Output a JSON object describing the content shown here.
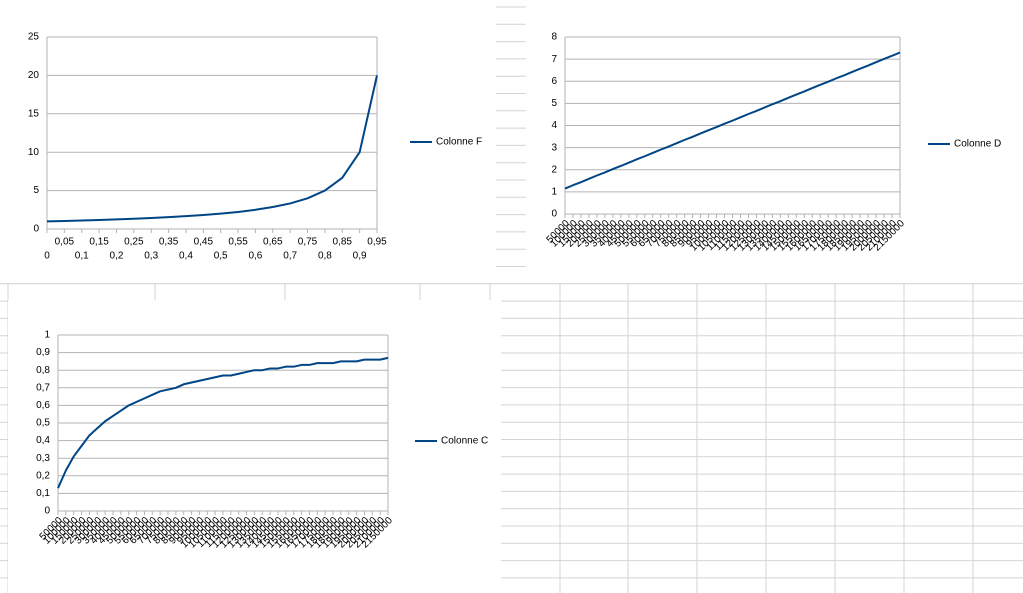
{
  "chart_data": [
    {
      "type": "line",
      "legend": "right",
      "grid": true,
      "categories": [
        "0",
        "0,05",
        "0,1",
        "0,15",
        "0,2",
        "0,25",
        "0,3",
        "0,35",
        "0,4",
        "0,45",
        "0,5",
        "0,55",
        "0,6",
        "0,65",
        "0,7",
        "0,75",
        "0,8",
        "0,85",
        "0,9",
        "0,95"
      ],
      "series": [
        {
          "name": "Colonne F",
          "color": "#004586",
          "values": [
            1,
            1.05,
            1.11,
            1.18,
            1.25,
            1.33,
            1.43,
            1.54,
            1.67,
            1.82,
            2,
            2.22,
            2.5,
            2.86,
            3.33,
            4,
            5,
            6.67,
            10,
            20
          ]
        }
      ],
      "ylim": [
        0,
        25
      ],
      "yticks": [
        0,
        5,
        10,
        15,
        20,
        25
      ]
    },
    {
      "type": "line",
      "legend": "right",
      "grid": true,
      "categories": [
        "50000",
        "100000",
        "150000",
        "200000",
        "250000",
        "300000",
        "350000",
        "400000",
        "450000",
        "500000",
        "550000",
        "600000",
        "650000",
        "700000",
        "750000",
        "800000",
        "850000",
        "900000",
        "950000",
        "1000000",
        "1050000",
        "1100000",
        "1150000",
        "1200000",
        "1250000",
        "1300000",
        "1350000",
        "1400000",
        "1450000",
        "1500000",
        "1550000",
        "1600000",
        "1650000",
        "1700000",
        "1750000",
        "1800000",
        "1850000",
        "1900000",
        "1950000",
        "2000000",
        "2050000",
        "2100000",
        "2150000"
      ],
      "series": [
        {
          "name": "Colonne D",
          "color": "#004586",
          "values": [
            1.15,
            1.3,
            1.44,
            1.59,
            1.74,
            1.88,
            2.03,
            2.17,
            2.32,
            2.47,
            2.61,
            2.76,
            2.91,
            3.05,
            3.2,
            3.35,
            3.49,
            3.64,
            3.79,
            3.93,
            4.08,
            4.22,
            4.37,
            4.52,
            4.66,
            4.81,
            4.96,
            5.1,
            5.25,
            5.4,
            5.54,
            5.69,
            5.84,
            5.98,
            6.13,
            6.27,
            6.42,
            6.57,
            6.71,
            6.86,
            7.01,
            7.15,
            7.3
          ]
        }
      ],
      "ylim": [
        0,
        8
      ],
      "yticks": [
        0,
        1,
        2,
        3,
        4,
        5,
        6,
        7,
        8
      ]
    },
    {
      "type": "line",
      "legend": "right",
      "grid": true,
      "categories": [
        "50000",
        "100000",
        "150000",
        "200000",
        "250000",
        "300000",
        "350000",
        "400000",
        "450000",
        "500000",
        "550000",
        "600000",
        "650000",
        "700000",
        "750000",
        "800000",
        "850000",
        "900000",
        "950000",
        "1000000",
        "1050000",
        "1100000",
        "1150000",
        "1200000",
        "1250000",
        "1300000",
        "1350000",
        "1400000",
        "1450000",
        "1500000",
        "1550000",
        "1600000",
        "1650000",
        "1700000",
        "1750000",
        "1800000",
        "1850000",
        "1900000",
        "1950000",
        "2000000",
        "2050000",
        "2100000",
        "2150000"
      ],
      "series": [
        {
          "name": "Colonne C",
          "color": "#004586",
          "values": [
            0.13,
            0.23,
            0.31,
            0.37,
            0.43,
            0.47,
            0.51,
            0.54,
            0.57,
            0.6,
            0.62,
            0.64,
            0.66,
            0.68,
            0.69,
            0.7,
            0.72,
            0.73,
            0.74,
            0.75,
            0.76,
            0.77,
            0.77,
            0.78,
            0.79,
            0.8,
            0.8,
            0.81,
            0.81,
            0.82,
            0.82,
            0.83,
            0.83,
            0.84,
            0.84,
            0.84,
            0.85,
            0.85,
            0.85,
            0.86,
            0.86,
            0.86,
            0.87
          ]
        }
      ],
      "ylim": [
        0,
        1
      ],
      "yticks": [
        0,
        {
          "value": 0.1,
          "label": "0,1"
        },
        {
          "value": 0.2,
          "label": "0,2"
        },
        {
          "value": 0.3,
          "label": "0,3"
        },
        {
          "value": 0.4,
          "label": "0,4"
        },
        {
          "value": 0.5,
          "label": "0,5"
        },
        {
          "value": 0.6,
          "label": "0,6"
        },
        {
          "value": 0.7,
          "label": "0,7"
        },
        {
          "value": 0.8,
          "label": "0,8"
        },
        {
          "value": 0.9,
          "label": "0,9"
        },
        1
      ]
    }
  ]
}
